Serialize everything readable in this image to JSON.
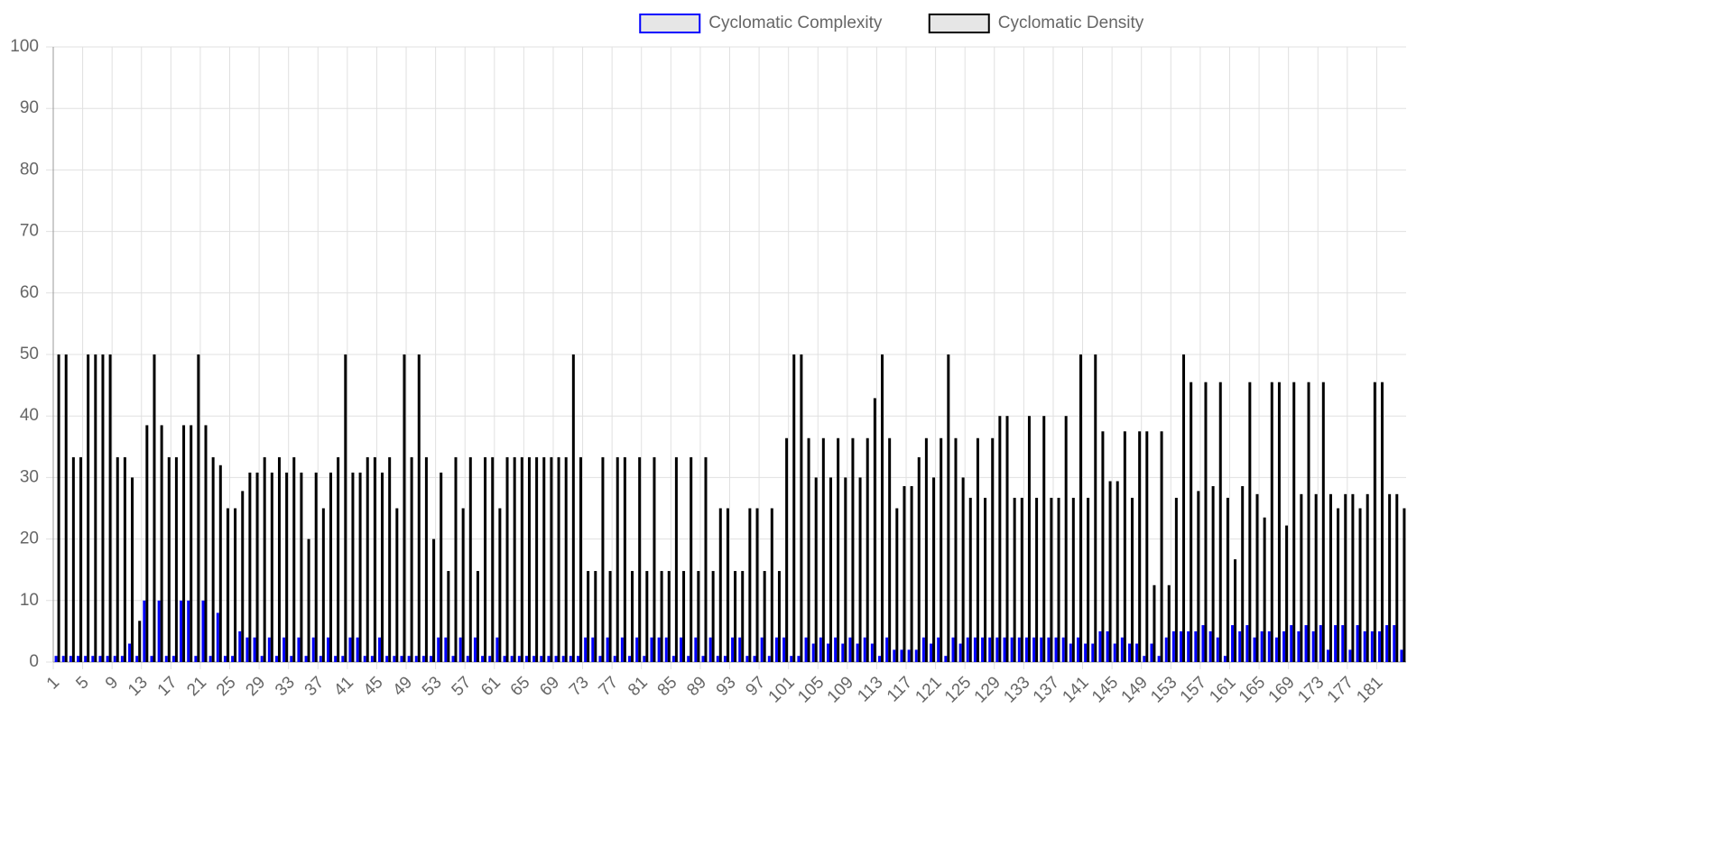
{
  "chart_data": {
    "type": "bar",
    "categories": [
      "1",
      null,
      null,
      null,
      "5",
      null,
      null,
      null,
      "9",
      null,
      null,
      null,
      "13",
      null,
      null,
      null,
      "17",
      null,
      null,
      null,
      "21",
      null,
      null,
      null,
      "25",
      null,
      null,
      null,
      "29",
      null,
      null,
      null,
      "33",
      null,
      null,
      null,
      "37",
      null,
      null,
      null,
      "41",
      null,
      null,
      null,
      "45",
      null,
      null,
      null,
      "49",
      null,
      null,
      null,
      "53",
      null,
      null,
      null,
      "57",
      null,
      null,
      null,
      "61",
      null,
      null,
      null,
      "65",
      null,
      null,
      null,
      "69",
      null,
      null,
      null,
      "73",
      null,
      null,
      null,
      "77",
      null,
      null,
      null,
      "81",
      null,
      null,
      null,
      "85",
      null,
      null,
      null,
      "89",
      null,
      null,
      null,
      "93",
      null,
      null,
      null,
      "97",
      null,
      null,
      null,
      "101",
      null,
      null,
      null,
      "105",
      null,
      null,
      null,
      "109",
      null,
      null,
      null,
      "113",
      null,
      null,
      null,
      "117",
      null,
      null,
      null,
      "121",
      null,
      null,
      null,
      "125",
      null,
      null,
      null,
      "129",
      null,
      null,
      null,
      "133",
      null,
      null,
      null,
      "137",
      null,
      null,
      null,
      "141",
      null,
      null,
      null,
      "145",
      null,
      null,
      null,
      "149",
      null,
      null,
      null,
      "153",
      null,
      null,
      null,
      "157",
      null,
      null,
      null,
      "161",
      null,
      null,
      null,
      "165",
      null,
      null,
      null,
      "169",
      null,
      null,
      null,
      "173",
      null,
      null,
      null,
      "177",
      null,
      null,
      null,
      "181",
      null,
      null,
      null
    ],
    "series": [
      {
        "name": "Cyclomatic Complexity",
        "color": "#0000ff",
        "legend_fill": "#e6e6e6",
        "values": [
          1,
          1,
          1,
          1,
          1,
          1,
          1,
          1,
          1,
          1,
          3,
          1,
          10,
          1,
          10,
          1,
          1,
          10,
          10,
          1,
          10,
          1,
          8,
          1,
          1,
          5,
          4,
          4,
          1,
          4,
          1,
          4,
          1,
          4,
          1,
          4,
          1,
          4,
          1,
          1,
          4,
          4,
          1,
          1,
          4,
          1,
          1,
          1,
          1,
          1,
          1,
          1,
          4,
          4,
          1,
          4,
          1,
          4,
          1,
          1,
          4,
          1,
          1,
          1,
          1,
          1,
          1,
          1,
          1,
          1,
          1,
          1,
          4,
          4,
          1,
          4,
          1,
          4,
          1,
          4,
          1,
          4,
          4,
          4,
          1,
          4,
          1,
          4,
          1,
          4,
          1,
          1,
          4,
          4,
          1,
          1,
          4,
          1,
          4,
          4,
          1,
          1,
          4,
          3,
          4,
          3,
          4,
          3,
          4,
          3,
          4,
          3,
          1,
          4,
          2,
          2,
          2,
          2,
          4,
          3,
          4,
          1,
          4,
          3,
          4,
          4,
          4,
          4,
          4,
          4,
          4,
          4,
          4,
          4,
          4,
          4,
          4,
          4,
          3,
          4,
          3,
          3,
          5,
          5,
          3,
          4,
          3,
          3,
          1,
          3,
          1,
          4,
          5,
          5,
          5,
          5,
          6,
          5,
          4,
          1,
          6,
          5,
          6,
          4,
          5,
          5,
          4,
          5,
          6,
          5,
          6,
          5,
          6,
          2,
          6,
          6,
          2,
          6,
          5,
          5,
          5,
          6,
          6,
          2
        ]
      },
      {
        "name": "Cyclomatic Density",
        "color": "#000000",
        "legend_fill": "#e6e6e6",
        "values": [
          50,
          50,
          33.3,
          33.3,
          50,
          50,
          50,
          50,
          33.3,
          33.3,
          30,
          6.7,
          38.5,
          50,
          38.5,
          33.3,
          33.3,
          38.5,
          38.5,
          50,
          38.5,
          33.3,
          32,
          25,
          25,
          27.8,
          30.8,
          30.8,
          33.3,
          30.8,
          33.3,
          30.8,
          33.3,
          30.8,
          20,
          30.8,
          25,
          30.8,
          33.3,
          50,
          30.8,
          30.8,
          33.3,
          33.3,
          30.8,
          33.3,
          25,
          50,
          33.3,
          50,
          33.3,
          20,
          30.8,
          14.8,
          33.3,
          25,
          33.3,
          14.8,
          33.3,
          33.3,
          25,
          33.3,
          33.3,
          33.3,
          33.3,
          33.3,
          33.3,
          33.3,
          33.3,
          33.3,
          50,
          33.3,
          14.8,
          14.8,
          33.3,
          14.8,
          33.3,
          33.3,
          14.8,
          33.3,
          14.8,
          33.3,
          14.8,
          14.8,
          33.3,
          14.8,
          33.3,
          14.8,
          33.3,
          14.8,
          25,
          25,
          14.8,
          14.8,
          25,
          25,
          14.8,
          25,
          14.8,
          36.4,
          50,
          50,
          36.4,
          30,
          36.4,
          30,
          36.4,
          30,
          36.4,
          30,
          36.4,
          42.9,
          50,
          36.4,
          25,
          28.6,
          28.6,
          33.3,
          36.4,
          30,
          36.4,
          50,
          36.4,
          30,
          26.7,
          36.4,
          26.7,
          36.4,
          40,
          40,
          26.7,
          26.7,
          40,
          26.7,
          40,
          26.7,
          26.7,
          40,
          26.7,
          50,
          26.7,
          50,
          37.5,
          29.4,
          29.4,
          37.5,
          26.7,
          37.5,
          37.5,
          12.5,
          37.5,
          12.5,
          26.7,
          50,
          45.5,
          27.8,
          45.5,
          28.6,
          45.5,
          26.7,
          16.7,
          28.6,
          45.5,
          27.3,
          23.5,
          45.5,
          45.5,
          22.2,
          45.5,
          27.3,
          45.5,
          27.3,
          45.5,
          27.3,
          25,
          27.3,
          27.3,
          25,
          27.3,
          45.5,
          45.5,
          27.3,
          27.3,
          25
        ]
      }
    ],
    "ylim": [
      0,
      100
    ],
    "yticks": [
      0,
      10,
      20,
      30,
      40,
      50,
      60,
      70,
      80,
      90,
      100
    ],
    "grid": true,
    "legend": "top"
  }
}
